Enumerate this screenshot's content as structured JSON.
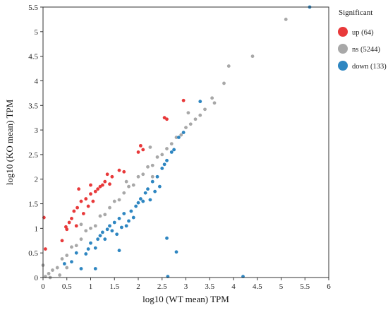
{
  "chart_data": {
    "type": "scatter",
    "title": "",
    "xlabel": "log10 (WT mean) TPM",
    "ylabel": "log10 (KO mean) TPM",
    "xlim": [
      0,
      6
    ],
    "ylim": [
      0,
      5.5
    ],
    "xticks": [
      0,
      0.5,
      1,
      1.5,
      2,
      2.5,
      3,
      3.5,
      4,
      4.5,
      5,
      5.5,
      6
    ],
    "yticks": [
      0,
      0.5,
      1,
      1.5,
      2,
      2.5,
      3,
      3.5,
      4,
      4.5,
      5,
      5.5
    ],
    "grid": false,
    "legend_position": "right",
    "legend_title": "Significant",
    "series": [
      {
        "name": "ns",
        "label": "ns (5244)",
        "color": "#a8a8a8",
        "count": 5244,
        "points": [
          [
            0.05,
            0.02
          ],
          [
            0.12,
            0.08
          ],
          [
            0.2,
            0.15
          ],
          [
            0.3,
            0.2
          ],
          [
            0.4,
            0.38
          ],
          [
            0.5,
            0.45
          ],
          [
            0.6,
            0.62
          ],
          [
            0.7,
            0.65
          ],
          [
            0.8,
            0.78
          ],
          [
            0.9,
            0.95
          ],
          [
            1.0,
            1.0
          ],
          [
            1.1,
            1.05
          ],
          [
            1.2,
            1.25
          ],
          [
            1.3,
            1.28
          ],
          [
            1.4,
            1.42
          ],
          [
            1.5,
            1.55
          ],
          [
            1.6,
            1.58
          ],
          [
            1.7,
            1.72
          ],
          [
            1.8,
            1.85
          ],
          [
            1.9,
            1.88
          ],
          [
            2.0,
            2.05
          ],
          [
            2.1,
            2.1
          ],
          [
            2.2,
            2.25
          ],
          [
            2.3,
            2.28
          ],
          [
            2.4,
            2.45
          ],
          [
            2.5,
            2.5
          ],
          [
            2.6,
            2.62
          ],
          [
            2.7,
            2.72
          ],
          [
            2.8,
            2.85
          ],
          [
            2.9,
            2.9
          ],
          [
            3.0,
            3.05
          ],
          [
            3.1,
            3.12
          ],
          [
            3.2,
            3.22
          ],
          [
            3.3,
            3.3
          ],
          [
            3.4,
            3.42
          ],
          [
            3.6,
            3.55
          ],
          [
            3.8,
            3.95
          ],
          [
            3.9,
            4.3
          ],
          [
            4.4,
            4.5
          ],
          [
            5.1,
            5.25
          ],
          [
            0.5,
            0.2
          ],
          [
            0.35,
            0.05
          ],
          [
            0.0,
            0.25
          ],
          [
            0.15,
            0.0
          ],
          [
            1.75,
            1.95
          ],
          [
            2.3,
            2.05
          ],
          [
            0.8,
            1.08
          ],
          [
            3.55,
            3.65
          ],
          [
            2.25,
            2.65
          ],
          [
            3.05,
            3.35
          ]
        ]
      },
      {
        "name": "up",
        "label": "up (64)",
        "color": "#e8393a",
        "count": 64,
        "points": [
          [
            0.02,
            1.22
          ],
          [
            0.05,
            0.58
          ],
          [
            0.48,
            1.03
          ],
          [
            0.5,
            0.98
          ],
          [
            0.55,
            1.12
          ],
          [
            0.6,
            1.2
          ],
          [
            0.65,
            1.35
          ],
          [
            0.7,
            1.05
          ],
          [
            0.72,
            1.42
          ],
          [
            0.8,
            1.55
          ],
          [
            0.85,
            1.3
          ],
          [
            0.9,
            1.6
          ],
          [
            0.95,
            1.45
          ],
          [
            1.0,
            1.7
          ],
          [
            1.05,
            1.55
          ],
          [
            1.1,
            1.75
          ],
          [
            1.15,
            1.8
          ],
          [
            1.2,
            1.85
          ],
          [
            1.25,
            1.88
          ],
          [
            1.3,
            1.95
          ],
          [
            1.35,
            2.1
          ],
          [
            1.4,
            1.9
          ],
          [
            1.45,
            2.05
          ],
          [
            1.6,
            2.18
          ],
          [
            1.7,
            2.15
          ],
          [
            2.0,
            2.55
          ],
          [
            2.05,
            2.68
          ],
          [
            2.1,
            2.6
          ],
          [
            2.55,
            3.25
          ],
          [
            2.6,
            3.22
          ],
          [
            2.95,
            3.6
          ],
          [
            0.75,
            1.8
          ],
          [
            1.0,
            1.88
          ],
          [
            0.4,
            0.75
          ]
        ]
      },
      {
        "name": "down",
        "label": "down (133)",
        "color": "#2e86c1",
        "count": 133,
        "points": [
          [
            5.6,
            5.5
          ],
          [
            0.45,
            0.28
          ],
          [
            0.6,
            0.32
          ],
          [
            0.7,
            0.5
          ],
          [
            0.8,
            0.18
          ],
          [
            0.9,
            0.48
          ],
          [
            0.95,
            0.58
          ],
          [
            1.0,
            0.7
          ],
          [
            1.1,
            0.6
          ],
          [
            1.15,
            0.78
          ],
          [
            1.2,
            0.85
          ],
          [
            1.25,
            0.92
          ],
          [
            1.3,
            0.78
          ],
          [
            1.35,
            0.98
          ],
          [
            1.4,
            1.05
          ],
          [
            1.45,
            0.95
          ],
          [
            1.5,
            1.12
          ],
          [
            1.55,
            0.88
          ],
          [
            1.6,
            1.2
          ],
          [
            1.65,
            1.02
          ],
          [
            1.7,
            1.3
          ],
          [
            1.75,
            1.05
          ],
          [
            1.8,
            1.15
          ],
          [
            1.85,
            1.35
          ],
          [
            1.9,
            1.22
          ],
          [
            1.95,
            1.45
          ],
          [
            2.0,
            1.52
          ],
          [
            2.05,
            1.6
          ],
          [
            2.1,
            1.55
          ],
          [
            2.15,
            1.72
          ],
          [
            2.2,
            1.8
          ],
          [
            2.25,
            1.58
          ],
          [
            2.3,
            1.95
          ],
          [
            2.35,
            1.75
          ],
          [
            2.4,
            2.05
          ],
          [
            2.45,
            1.85
          ],
          [
            2.5,
            2.22
          ],
          [
            2.55,
            2.3
          ],
          [
            2.6,
            2.38
          ],
          [
            2.7,
            2.55
          ],
          [
            2.75,
            2.6
          ],
          [
            2.85,
            2.85
          ],
          [
            2.95,
            2.95
          ],
          [
            3.3,
            3.58
          ],
          [
            1.6,
            0.55
          ],
          [
            2.6,
            0.8
          ],
          [
            2.8,
            0.52
          ],
          [
            2.62,
            0.02
          ],
          [
            4.2,
            0.02
          ],
          [
            1.1,
            0.18
          ]
        ]
      }
    ]
  }
}
